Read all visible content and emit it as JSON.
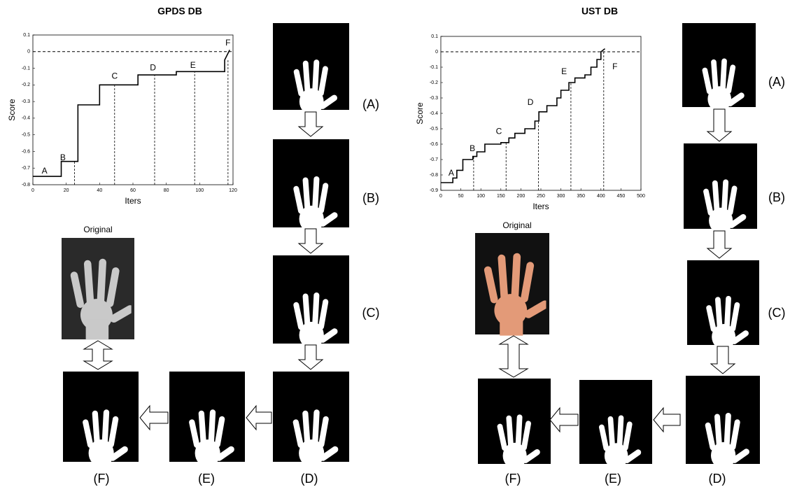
{
  "chart_data": [
    {
      "type": "line",
      "title": "GPDS DB",
      "xlabel": "Iters",
      "ylabel": "Score",
      "xlim": [
        0,
        120
      ],
      "xticks": [
        0,
        20,
        40,
        60,
        80,
        100,
        120
      ],
      "ylim": [
        -0.8,
        0.1
      ],
      "yticks": [
        -0.8,
        -0.7,
        -0.6,
        -0.5,
        -0.4,
        -0.3,
        -0.2,
        -0.1,
        0,
        0.1
      ],
      "hline": 0,
      "color": "#000000",
      "x": [
        0,
        17,
        17,
        27,
        27,
        40,
        40,
        63,
        63,
        86,
        86,
        115,
        115,
        118
      ],
      "values": [
        -0.75,
        -0.75,
        -0.66,
        -0.66,
        -0.32,
        -0.32,
        -0.2,
        -0.2,
        -0.14,
        -0.14,
        -0.12,
        -0.12,
        -0.05,
        0.01
      ],
      "markers": [
        25,
        49,
        73,
        97,
        117
      ],
      "annotations": [
        {
          "text": "A",
          "x": 7,
          "y": -0.72
        },
        {
          "text": "B",
          "x": 18,
          "y": -0.64
        },
        {
          "text": "C",
          "x": 49,
          "y": -0.15
        },
        {
          "text": "D",
          "x": 72,
          "y": -0.1
        },
        {
          "text": "E",
          "x": 96,
          "y": -0.085
        },
        {
          "text": "F",
          "x": 117,
          "y": 0.05
        }
      ]
    },
    {
      "type": "line",
      "title": "UST DB",
      "xlabel": "Iters",
      "ylabel": "Score",
      "xlim": [
        0,
        500
      ],
      "xticks": [
        0,
        50,
        100,
        150,
        200,
        250,
        300,
        350,
        400,
        450,
        500
      ],
      "ylim": [
        -0.9,
        0.1
      ],
      "yticks": [
        -0.9,
        -0.8,
        -0.7,
        -0.6,
        -0.5,
        -0.4,
        -0.3,
        -0.2,
        -0.1,
        0,
        0.1
      ],
      "hline": 0,
      "color": "#000000",
      "x": [
        0,
        30,
        30,
        40,
        40,
        55,
        55,
        80,
        80,
        90,
        90,
        110,
        110,
        150,
        150,
        170,
        170,
        185,
        185,
        210,
        210,
        235,
        235,
        245,
        245,
        265,
        265,
        290,
        290,
        300,
        300,
        320,
        320,
        335,
        335,
        360,
        360,
        375,
        375,
        390,
        390,
        400,
        400,
        410
      ],
      "values": [
        -0.85,
        -0.85,
        -0.82,
        -0.82,
        -0.77,
        -0.77,
        -0.7,
        -0.7,
        -0.68,
        -0.68,
        -0.65,
        -0.65,
        -0.6,
        -0.6,
        -0.59,
        -0.59,
        -0.56,
        -0.56,
        -0.53,
        -0.53,
        -0.5,
        -0.5,
        -0.45,
        -0.45,
        -0.39,
        -0.39,
        -0.35,
        -0.35,
        -0.3,
        -0.3,
        -0.25,
        -0.25,
        -0.2,
        -0.2,
        -0.17,
        -0.17,
        -0.15,
        -0.15,
        -0.1,
        -0.1,
        -0.05,
        -0.05,
        0,
        0.02
      ],
      "markers": [
        82,
        163,
        244,
        325,
        407
      ],
      "annotations": [
        {
          "text": "A",
          "x": 26,
          "y": -0.79
        },
        {
          "text": "B",
          "x": 79,
          "y": -0.63
        },
        {
          "text": "C",
          "x": 145,
          "y": -0.52
        },
        {
          "text": "D",
          "x": 224,
          "y": -0.33
        },
        {
          "text": "E",
          "x": 308,
          "y": -0.13
        },
        {
          "text": "F",
          "x": 435,
          "y": -0.1
        }
      ]
    }
  ],
  "panels": [
    {
      "original": "Original",
      "steps": [
        "(A)",
        "(B)",
        "(C)",
        "(D)",
        "(E)",
        "(F)"
      ]
    },
    {
      "original": "Original",
      "steps": [
        "(A)",
        "(B)",
        "(C)",
        "(D)",
        "(E)",
        "(F)"
      ]
    }
  ]
}
